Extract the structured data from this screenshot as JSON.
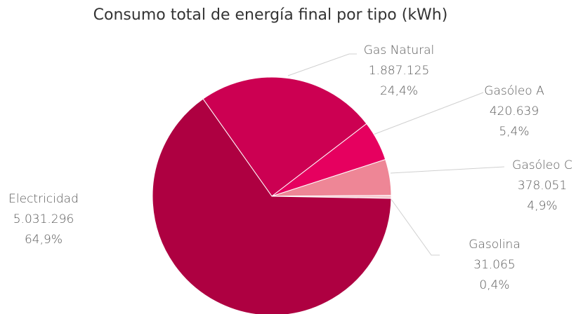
{
  "chart_data": {
    "type": "pie",
    "title": "Consumo total de energía final por tipo (kWh)",
    "categories": [
      "Gas Natural",
      "Gasóleo A",
      "Gasóleo C",
      "Gasolina",
      "Electricidad"
    ],
    "values": [
      1887125,
      420639,
      378051,
      31065,
      5031296
    ],
    "value_labels": [
      "1.887.125",
      "420.639",
      "378.051",
      "31.065",
      "5.031.296"
    ],
    "percent_labels": [
      "24,4%",
      "5,4%",
      "4,9%",
      "0,4%",
      "64,9%"
    ],
    "colors": [
      "#cc0052",
      "#e6005f",
      "#ee8696",
      "#f6c5cc",
      "#ae0041"
    ]
  }
}
